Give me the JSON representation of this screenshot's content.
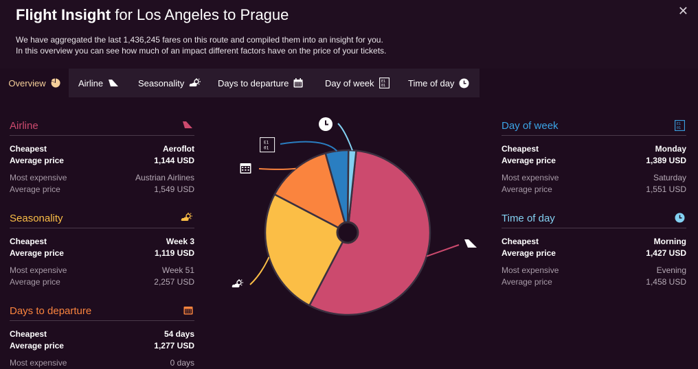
{
  "header": {
    "title_bold": "Flight Insight",
    "title_rest": "for Los Angeles to Prague",
    "desc_line1": "We have aggregated the last 1,436,245 fares on this route and compiled them into an insight for you.",
    "desc_line2": "In this overview you can see how much of an impact different factors have on the price of your tickets.",
    "close_label": "✕"
  },
  "tabs": [
    {
      "label": "Overview",
      "icon": "pie-icon"
    },
    {
      "label": "Airline",
      "icon": "plane-tail-icon"
    },
    {
      "label": "Seasonality",
      "icon": "sun-cloud-icon"
    },
    {
      "label": "Days to departure",
      "icon": "calendar-icon"
    },
    {
      "label": "Day of week",
      "icon": "week-calendar-icon"
    },
    {
      "label": "Time of day",
      "icon": "clock-icon"
    }
  ],
  "colors": {
    "airline": "#cc4a6e",
    "seasonality": "#fbbe46",
    "days_to_departure": "#fa843e",
    "day_of_week": "#3ba4e6",
    "time_of_day": "#83d1f2"
  },
  "left": {
    "airline": {
      "title": "Airline",
      "cheapest_label": "Cheapest",
      "cheapest_value": "Aeroflot",
      "avg_label": "Average price",
      "cheapest_price": "1,144 USD",
      "expensive_label": "Most expensive",
      "expensive_value": "Austrian Airlines",
      "avg_label2": "Average price",
      "expensive_price": "1,549 USD"
    },
    "seasonality": {
      "title": "Seasonality",
      "cheapest_label": "Cheapest",
      "cheapest_value": "Week 3",
      "avg_label": "Average price",
      "cheapest_price": "1,119 USD",
      "expensive_label": "Most expensive",
      "expensive_value": "Week 51",
      "avg_label2": "Average price",
      "expensive_price": "2,257 USD"
    },
    "days_to_departure": {
      "title": "Days to departure",
      "cheapest_label": "Cheapest",
      "cheapest_value": "54 days",
      "avg_label": "Average price",
      "cheapest_price": "1,277 USD",
      "expensive_label": "Most expensive",
      "expensive_value": "0 days"
    }
  },
  "right": {
    "day_of_week": {
      "title": "Day of week",
      "cheapest_label": "Cheapest",
      "cheapest_value": "Monday",
      "avg_label": "Average price",
      "cheapest_price": "1,389 USD",
      "expensive_label": "Most expensive",
      "expensive_value": "Saturday",
      "avg_label2": "Average price",
      "expensive_price": "1,551 USD"
    },
    "time_of_day": {
      "title": "Time of day",
      "cheapest_label": "Cheapest",
      "cheapest_value": "Morning",
      "avg_label": "Average price",
      "cheapest_price": "1,427 USD",
      "expensive_label": "Most expensive",
      "expensive_value": "Evening",
      "avg_label2": "Average price",
      "expensive_price": "1,458 USD"
    }
  },
  "chart_data": {
    "type": "pie",
    "labels": [
      "Airline",
      "Seasonality",
      "Days to departure",
      "Day of week",
      "Time of day"
    ],
    "values": [
      56,
      25,
      13,
      4.5,
      1.5
    ],
    "colors": [
      "#cc4a6e",
      "#fbbe46",
      "#fa843e",
      "#2a7ec1",
      "#83d1f2"
    ],
    "legend": "none"
  }
}
